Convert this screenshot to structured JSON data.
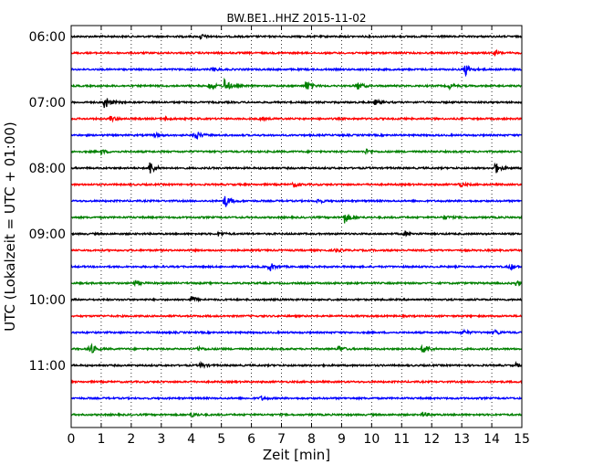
{
  "chart_data": {
    "type": "line",
    "title": "BW.BE1..HHZ 2015-11-02",
    "xlabel": "Zeit  [min]",
    "ylabel": "UTC (Lokalzeit = UTC + 01:00)",
    "xlim": [
      0,
      15
    ],
    "x_ticks": [
      "0",
      "1",
      "2",
      "3",
      "4",
      "5",
      "6",
      "7",
      "8",
      "9",
      "10",
      "11",
      "12",
      "13",
      "14",
      "15"
    ],
    "y_ticks": [
      "06:00",
      "07:00",
      "08:00",
      "09:00",
      "10:00",
      "11:00"
    ],
    "grid": "vertical-dotted",
    "color_cycle": [
      "#000000",
      "#ff0000",
      "#0000ff",
      "#008000"
    ],
    "traces": [
      {
        "start": "06:00",
        "events": [
          {
            "t": 4.3,
            "a": 0.35
          }
        ]
      },
      {
        "start": "06:15",
        "events": [
          {
            "t": 14.1,
            "a": 0.3
          }
        ]
      },
      {
        "start": "06:30",
        "events": [
          {
            "t": 13.1,
            "a": 0.9
          },
          {
            "t": 4.7,
            "a": 0.25
          }
        ]
      },
      {
        "start": "06:45",
        "events": [
          {
            "t": 4.6,
            "a": 0.6
          },
          {
            "t": 5.1,
            "a": 0.9
          },
          {
            "t": 7.8,
            "a": 0.7
          },
          {
            "t": 9.5,
            "a": 0.6
          },
          {
            "t": 12.6,
            "a": 0.3
          }
        ]
      },
      {
        "start": "07:00",
        "events": [
          {
            "t": 1.1,
            "a": 1.0
          },
          {
            "t": 10.1,
            "a": 0.35
          }
        ]
      },
      {
        "start": "07:15",
        "events": [
          {
            "t": 1.3,
            "a": 0.35
          },
          {
            "t": 3.1,
            "a": 0.3
          },
          {
            "t": 6.3,
            "a": 0.2
          }
        ]
      },
      {
        "start": "07:30",
        "events": [
          {
            "t": 4.1,
            "a": 0.8
          },
          {
            "t": 2.8,
            "a": 0.25
          }
        ]
      },
      {
        "start": "07:45",
        "events": [
          {
            "t": 1.0,
            "a": 0.3
          },
          {
            "t": 9.8,
            "a": 0.3
          }
        ]
      },
      {
        "start": "08:00",
        "events": [
          {
            "t": 2.6,
            "a": 1.0
          },
          {
            "t": 14.1,
            "a": 0.8
          }
        ]
      },
      {
        "start": "08:15",
        "events": [
          {
            "t": 7.4,
            "a": 0.35
          },
          {
            "t": 12.9,
            "a": 0.35
          }
        ]
      },
      {
        "start": "08:30",
        "events": [
          {
            "t": 5.1,
            "a": 1.0
          },
          {
            "t": 8.2,
            "a": 0.3
          }
        ]
      },
      {
        "start": "08:45",
        "events": [
          {
            "t": 9.1,
            "a": 0.8
          },
          {
            "t": 12.4,
            "a": 0.3
          }
        ]
      },
      {
        "start": "09:00",
        "events": [
          {
            "t": 4.9,
            "a": 0.3
          },
          {
            "t": 11.1,
            "a": 0.3
          }
        ]
      },
      {
        "start": "09:15",
        "events": [
          {
            "t": 8.8,
            "a": 0.25
          }
        ]
      },
      {
        "start": "09:30",
        "events": [
          {
            "t": 6.6,
            "a": 0.6
          },
          {
            "t": 14.6,
            "a": 0.35
          }
        ]
      },
      {
        "start": "09:45",
        "events": [
          {
            "t": 2.1,
            "a": 0.35
          },
          {
            "t": 14.8,
            "a": 0.3
          }
        ]
      },
      {
        "start": "10:00",
        "events": [
          {
            "t": 4.0,
            "a": 0.45
          }
        ]
      },
      {
        "start": "10:15",
        "events": []
      },
      {
        "start": "10:30",
        "events": [
          {
            "t": 13.0,
            "a": 0.35
          },
          {
            "t": 14.1,
            "a": 0.3
          }
        ]
      },
      {
        "start": "10:45",
        "events": [
          {
            "t": 0.6,
            "a": 0.9
          },
          {
            "t": 8.9,
            "a": 0.4
          },
          {
            "t": 11.7,
            "a": 0.9
          },
          {
            "t": 4.2,
            "a": 0.3
          }
        ]
      },
      {
        "start": "11:00",
        "events": [
          {
            "t": 4.3,
            "a": 0.3
          },
          {
            "t": 14.8,
            "a": 0.25
          }
        ]
      },
      {
        "start": "11:15",
        "events": []
      },
      {
        "start": "11:30",
        "events": [
          {
            "t": 6.3,
            "a": 0.25
          }
        ]
      },
      {
        "start": "11:45",
        "events": [
          {
            "t": 4.0,
            "a": 0.3
          },
          {
            "t": 11.7,
            "a": 0.3
          }
        ]
      }
    ]
  }
}
